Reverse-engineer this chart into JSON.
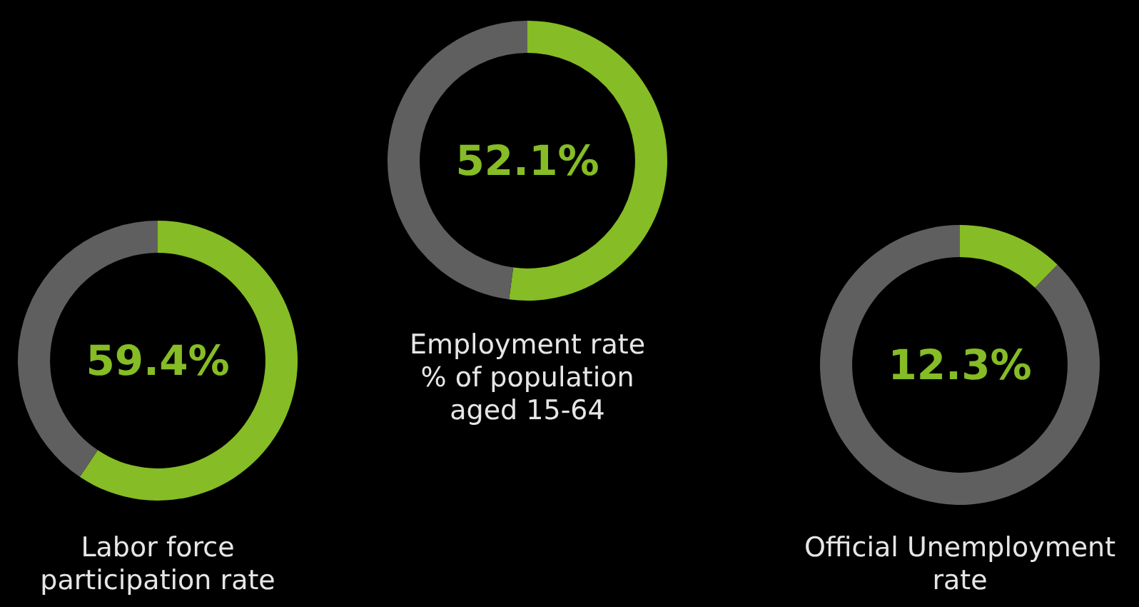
{
  "chart_data": [
    {
      "type": "donut",
      "title": "Labor force participation rate",
      "categories": [
        null,
        null
      ],
      "values": [
        59.4,
        40.6
      ],
      "colors": [
        "#86bc25",
        "#5f5f5f"
      ],
      "value_labels": [
        "59.4%",
        null
      ]
    },
    {
      "type": "donut",
      "title": "Employment rate % of population aged 15-64",
      "categories": [
        null,
        null
      ],
      "values": [
        52.1,
        47.9
      ],
      "colors": [
        "#86bc25",
        "#5f5f5f"
      ],
      "value_labels": [
        "52.1%",
        null
      ]
    },
    {
      "type": "donut",
      "title": "Official Unemployment rate",
      "categories": [
        null,
        null
      ],
      "values": [
        12.3,
        87.7
      ],
      "colors": [
        "#86bc25",
        "#5f5f5f"
      ],
      "value_labels": [
        "12.3%",
        null
      ]
    }
  ]
}
